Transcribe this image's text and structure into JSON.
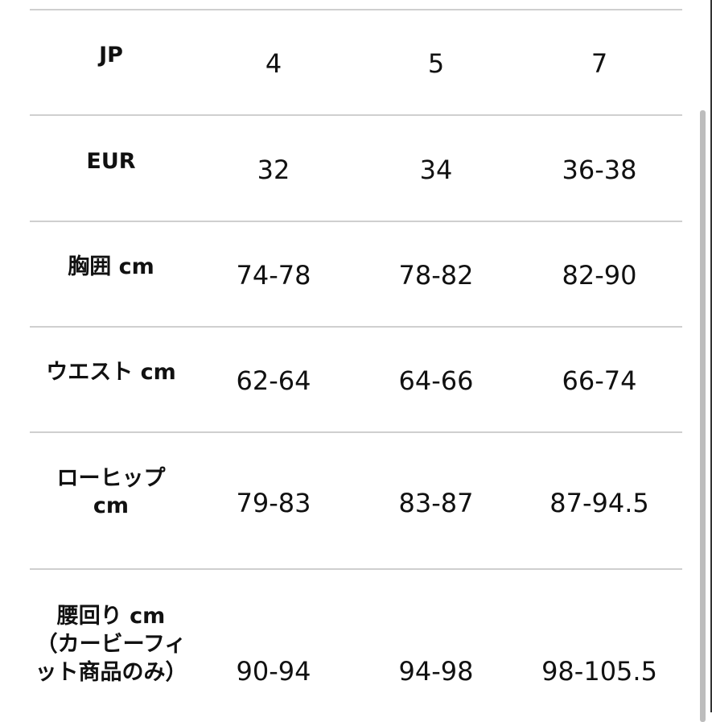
{
  "table": {
    "rows": [
      {
        "label": "JP",
        "values": [
          "4",
          "5",
          "7"
        ]
      },
      {
        "label": "EUR",
        "values": [
          "32",
          "34",
          "36-38"
        ]
      },
      {
        "label": "胸囲 cm",
        "values": [
          "74-78",
          "78-82",
          "82-90"
        ]
      },
      {
        "label": "ウエスト cm",
        "values": [
          "62-64",
          "64-66",
          "66-74"
        ]
      },
      {
        "label": "ローヒップ cm",
        "values": [
          "79-83",
          "83-87",
          "87-94.5"
        ]
      },
      {
        "label": "腰回り cm （カービーフィット商品のみ）",
        "values": [
          "90-94",
          "94-98",
          "98-105.5"
        ]
      }
    ]
  }
}
